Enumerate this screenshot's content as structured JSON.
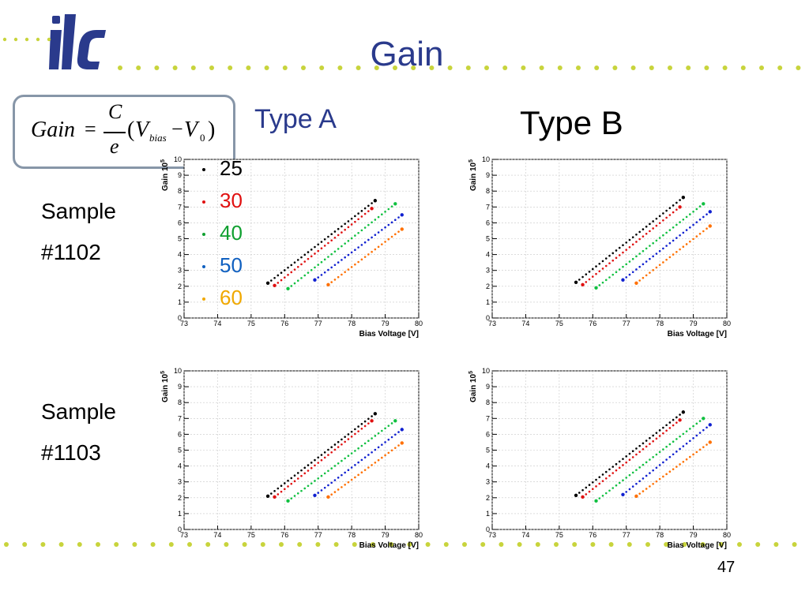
{
  "slide": {
    "title": "Gain",
    "page_number": "47",
    "colors": {
      "title": "#2a3a8c",
      "dots": "#c8d43c",
      "box_border": "#8796a8"
    }
  },
  "logo": {
    "text": "ilc",
    "icon": "ilc-logo"
  },
  "formula": {
    "lhs": "Gain",
    "equals": "=",
    "numerator": "C",
    "denominator": "e",
    "paren_open": "(",
    "v_bias": "V",
    "bias_sub": "bias",
    "minus": "−",
    "v_zero": "V",
    "zero_sub": "0",
    "paren_close": ")"
  },
  "column_headers": {
    "type_a": "Type A",
    "type_b": "Type B"
  },
  "rows": [
    {
      "line1": "Sample",
      "line2": "#1102"
    },
    {
      "line1": "Sample",
      "line2": "#1103"
    }
  ],
  "legend": [
    {
      "label": "25",
      "color": "#000000"
    },
    {
      "label": "30",
      "color": "#e01010"
    },
    {
      "label": "40",
      "color": "#10a030"
    },
    {
      "label": "50",
      "color": "#1060c0"
    },
    {
      "label": "60",
      "color": "#f0a800"
    }
  ],
  "chart_data": [
    {
      "type": "scatter",
      "panel": "Type A / Sample #1102",
      "xlabel": "Bias Voltage [V]",
      "ylabel": "Gain 10^5",
      "xlim": [
        73,
        80
      ],
      "ylim": [
        0,
        10
      ],
      "x_ticks": [
        "73",
        "74",
        "75",
        "76",
        "77",
        "78",
        "79",
        "80"
      ],
      "y_ticks": [
        "0",
        "1",
        "2",
        "3",
        "4",
        "5",
        "6",
        "7",
        "8",
        "9",
        "10"
      ],
      "grid": true,
      "series": [
        {
          "name": "25",
          "color": "#000000",
          "x_start": 75.5,
          "x_end": 78.7,
          "y_start": 2.2,
          "y_end": 7.4
        },
        {
          "name": "30",
          "color": "#e01010",
          "x_start": 75.7,
          "x_end": 78.6,
          "y_start": 2.05,
          "y_end": 6.9
        },
        {
          "name": "40",
          "color": "#10c040",
          "x_start": 76.1,
          "x_end": 79.3,
          "y_start": 1.85,
          "y_end": 7.2
        },
        {
          "name": "50",
          "color": "#1020d0",
          "x_start": 76.9,
          "x_end": 79.5,
          "y_start": 2.4,
          "y_end": 6.5
        },
        {
          "name": "60",
          "color": "#ff7000",
          "x_start": 77.3,
          "x_end": 79.5,
          "y_start": 2.1,
          "y_end": 5.6
        }
      ]
    },
    {
      "type": "scatter",
      "panel": "Type B / Sample #1102",
      "xlabel": "Bias Voltage [V]",
      "ylabel": "Gain 10^5",
      "xlim": [
        73,
        80
      ],
      "ylim": [
        0,
        10
      ],
      "x_ticks": [
        "73",
        "74",
        "75",
        "76",
        "77",
        "78",
        "79",
        "80"
      ],
      "y_ticks": [
        "0",
        "1",
        "2",
        "3",
        "4",
        "5",
        "6",
        "7",
        "8",
        "9",
        "10"
      ],
      "grid": true,
      "series": [
        {
          "name": "25",
          "color": "#000000",
          "x_start": 75.5,
          "x_end": 78.7,
          "y_start": 2.25,
          "y_end": 7.6
        },
        {
          "name": "30",
          "color": "#e01010",
          "x_start": 75.7,
          "x_end": 78.6,
          "y_start": 2.1,
          "y_end": 7.0
        },
        {
          "name": "40",
          "color": "#10c040",
          "x_start": 76.1,
          "x_end": 79.3,
          "y_start": 1.9,
          "y_end": 7.2
        },
        {
          "name": "50",
          "color": "#1020d0",
          "x_start": 76.9,
          "x_end": 79.5,
          "y_start": 2.4,
          "y_end": 6.7
        },
        {
          "name": "60",
          "color": "#ff7000",
          "x_start": 77.3,
          "x_end": 79.5,
          "y_start": 2.2,
          "y_end": 5.8
        }
      ]
    },
    {
      "type": "scatter",
      "panel": "Type A / Sample #1103",
      "xlabel": "Bias Voltage [V]",
      "ylabel": "Gain 10^5",
      "xlim": [
        73,
        80
      ],
      "ylim": [
        0,
        10
      ],
      "x_ticks": [
        "73",
        "74",
        "75",
        "76",
        "77",
        "78",
        "79",
        "80"
      ],
      "y_ticks": [
        "0",
        "1",
        "2",
        "3",
        "4",
        "5",
        "6",
        "7",
        "8",
        "9",
        "10"
      ],
      "grid": true,
      "series": [
        {
          "name": "25",
          "color": "#000000",
          "x_start": 75.5,
          "x_end": 78.7,
          "y_start": 2.1,
          "y_end": 7.3
        },
        {
          "name": "30",
          "color": "#e01010",
          "x_start": 75.7,
          "x_end": 78.6,
          "y_start": 2.05,
          "y_end": 6.85
        },
        {
          "name": "40",
          "color": "#10c040",
          "x_start": 76.1,
          "x_end": 79.3,
          "y_start": 1.8,
          "y_end": 6.85
        },
        {
          "name": "50",
          "color": "#1020d0",
          "x_start": 76.9,
          "x_end": 79.5,
          "y_start": 2.15,
          "y_end": 6.3
        },
        {
          "name": "60",
          "color": "#ff7000",
          "x_start": 77.3,
          "x_end": 79.5,
          "y_start": 2.05,
          "y_end": 5.45
        }
      ]
    },
    {
      "type": "scatter",
      "panel": "Type B / Sample #1103",
      "xlabel": "Bias Voltage [V]",
      "ylabel": "Gain 10^5",
      "xlim": [
        73,
        80
      ],
      "ylim": [
        0,
        10
      ],
      "x_ticks": [
        "73",
        "74",
        "75",
        "76",
        "77",
        "78",
        "79",
        "80"
      ],
      "y_ticks": [
        "0",
        "1",
        "2",
        "3",
        "4",
        "5",
        "6",
        "7",
        "8",
        "9",
        "10"
      ],
      "grid": true,
      "series": [
        {
          "name": "25",
          "color": "#000000",
          "x_start": 75.5,
          "x_end": 78.7,
          "y_start": 2.15,
          "y_end": 7.4
        },
        {
          "name": "30",
          "color": "#e01010",
          "x_start": 75.7,
          "x_end": 78.6,
          "y_start": 2.05,
          "y_end": 6.9
        },
        {
          "name": "40",
          "color": "#10c040",
          "x_start": 76.1,
          "x_end": 79.3,
          "y_start": 1.8,
          "y_end": 7.0
        },
        {
          "name": "50",
          "color": "#1020d0",
          "x_start": 76.9,
          "x_end": 79.5,
          "y_start": 2.2,
          "y_end": 6.6
        },
        {
          "name": "60",
          "color": "#ff7000",
          "x_start": 77.3,
          "x_end": 79.5,
          "y_start": 2.1,
          "y_end": 5.5
        }
      ]
    }
  ]
}
